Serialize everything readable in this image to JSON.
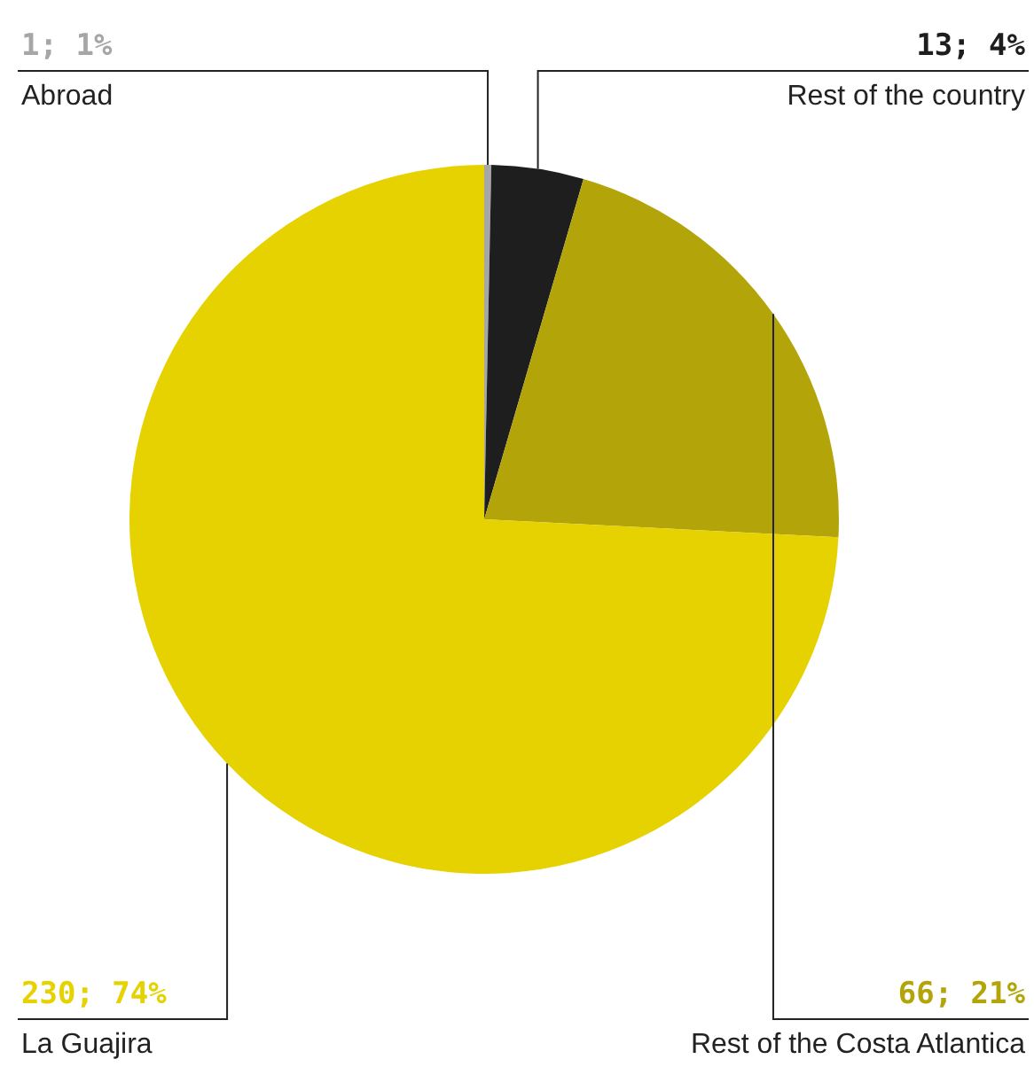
{
  "chart_data": {
    "type": "pie",
    "categories": [
      "Abroad",
      "Rest of the country",
      "Rest of the Costa Atlantica",
      "La Guajira"
    ],
    "values": [
      1,
      13,
      66,
      230
    ],
    "colors": [
      "#a6a6a6",
      "#1e1e1e",
      "#b3a509",
      "#e5d200"
    ],
    "value_labels": [
      "1; 1%",
      "13; 4%",
      "66; 21%",
      "230; 74%"
    ]
  }
}
